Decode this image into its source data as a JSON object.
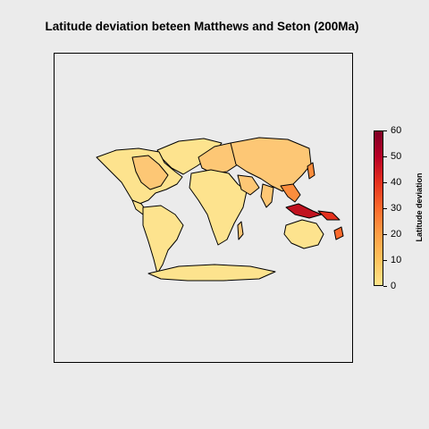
{
  "title": "Latitude deviation beteen Matthews and Seton (200Ma)",
  "legend": {
    "title": "Latitude deviation",
    "ticks": [
      "0",
      "10",
      "20",
      "30",
      "40",
      "50",
      "60"
    ],
    "range": [
      0,
      60
    ],
    "colors": [
      "#ffe48a",
      "#fec25c",
      "#fd9d44",
      "#fb6a2c",
      "#e5311d",
      "#b80026",
      "#800026"
    ]
  },
  "map": {
    "projection": "equal-area world map",
    "fill_colors": {
      "low": "#fde38e",
      "mid": "#fdc775",
      "high": "#fb8d3d",
      "very_high": "#c1121f"
    },
    "outline_color": "#000000"
  }
}
